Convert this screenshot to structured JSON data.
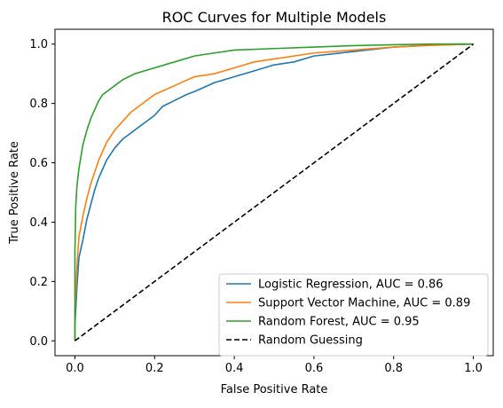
{
  "chart_data": {
    "type": "line",
    "title": "ROC Curves for Multiple Models",
    "xlabel": "False Positive Rate",
    "ylabel": "True Positive Rate",
    "xlim": [
      -0.05,
      1.05
    ],
    "ylim": [
      -0.05,
      1.05
    ],
    "xticks": [
      "0.0",
      "0.2",
      "0.4",
      "0.6",
      "0.8",
      "1.0"
    ],
    "yticks": [
      "0.0",
      "0.2",
      "0.4",
      "0.6",
      "0.8",
      "1.0"
    ],
    "grid": false,
    "legend_position": "lower-right",
    "series": [
      {
        "name": "Logistic Regression, AUC = 0.86",
        "color": "#1f77b4",
        "style": "solid",
        "x": [
          0.0,
          0.0,
          0.005,
          0.01,
          0.02,
          0.03,
          0.04,
          0.05,
          0.06,
          0.07,
          0.08,
          0.1,
          0.12,
          0.14,
          0.16,
          0.18,
          0.2,
          0.22,
          0.25,
          0.28,
          0.3,
          0.35,
          0.4,
          0.45,
          0.5,
          0.55,
          0.6,
          0.7,
          0.8,
          0.9,
          1.0
        ],
        "y": [
          0.0,
          0.05,
          0.18,
          0.28,
          0.34,
          0.41,
          0.46,
          0.51,
          0.55,
          0.58,
          0.61,
          0.65,
          0.68,
          0.7,
          0.72,
          0.74,
          0.76,
          0.79,
          0.81,
          0.83,
          0.84,
          0.87,
          0.89,
          0.91,
          0.93,
          0.94,
          0.96,
          0.975,
          0.99,
          0.997,
          1.0
        ]
      },
      {
        "name": "Support Vector Machine, AUC = 0.89",
        "color": "#ff7f0e",
        "style": "solid",
        "x": [
          0.0,
          0.0,
          0.005,
          0.01,
          0.02,
          0.03,
          0.04,
          0.05,
          0.06,
          0.07,
          0.08,
          0.1,
          0.12,
          0.14,
          0.16,
          0.18,
          0.2,
          0.25,
          0.3,
          0.35,
          0.4,
          0.45,
          0.5,
          0.55,
          0.6,
          0.7,
          0.8,
          0.9,
          1.0
        ],
        "y": [
          0.0,
          0.1,
          0.25,
          0.35,
          0.42,
          0.48,
          0.53,
          0.57,
          0.61,
          0.64,
          0.67,
          0.71,
          0.74,
          0.77,
          0.79,
          0.81,
          0.83,
          0.86,
          0.89,
          0.9,
          0.92,
          0.94,
          0.95,
          0.96,
          0.97,
          0.98,
          0.99,
          0.996,
          1.0
        ]
      },
      {
        "name": "Random Forest, AUC = 0.95",
        "color": "#2ca02c",
        "style": "solid",
        "x": [
          0.0,
          0.0,
          0.002,
          0.005,
          0.01,
          0.015,
          0.02,
          0.03,
          0.04,
          0.05,
          0.06,
          0.07,
          0.08,
          0.1,
          0.12,
          0.15,
          0.2,
          0.25,
          0.3,
          0.35,
          0.4,
          0.5,
          0.6,
          0.7,
          0.8,
          0.9,
          1.0
        ],
        "y": [
          0.0,
          0.3,
          0.45,
          0.52,
          0.58,
          0.62,
          0.66,
          0.71,
          0.75,
          0.78,
          0.81,
          0.83,
          0.84,
          0.86,
          0.88,
          0.9,
          0.92,
          0.94,
          0.96,
          0.97,
          0.98,
          0.985,
          0.99,
          0.995,
          0.998,
          1.0,
          1.0
        ]
      },
      {
        "name": "Random Guessing",
        "color": "#000000",
        "style": "dashed",
        "x": [
          0.0,
          1.0
        ],
        "y": [
          0.0,
          1.0
        ]
      }
    ]
  }
}
